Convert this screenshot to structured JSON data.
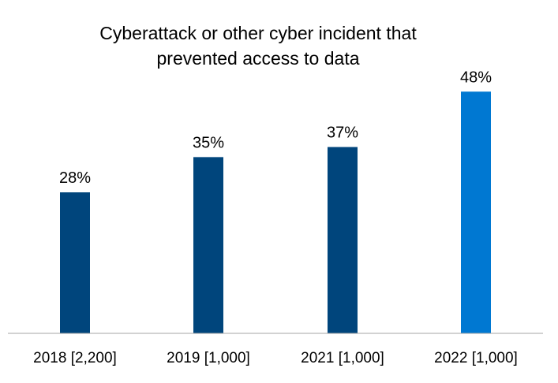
{
  "chart_data": {
    "type": "bar",
    "title_lines": [
      "Cyberattack or other cyber incident that",
      "prevented access to data"
    ],
    "categories": [
      "2018 [2,200]",
      "2019 [1,000]",
      "2021 [1,000]",
      "2022 [1,000]"
    ],
    "values": [
      28,
      35,
      37,
      48
    ],
    "value_labels": [
      "28%",
      "35%",
      "37%",
      "48%"
    ],
    "unit": "%",
    "xlabel": "",
    "ylabel": "",
    "ylim": [
      0,
      55
    ],
    "grid": false,
    "legend": "none",
    "colors": {
      "default_bar": "#00457C",
      "highlight_bar": "#0078D2",
      "axis": "#A6A6A6"
    },
    "highlight_index": 3
  }
}
